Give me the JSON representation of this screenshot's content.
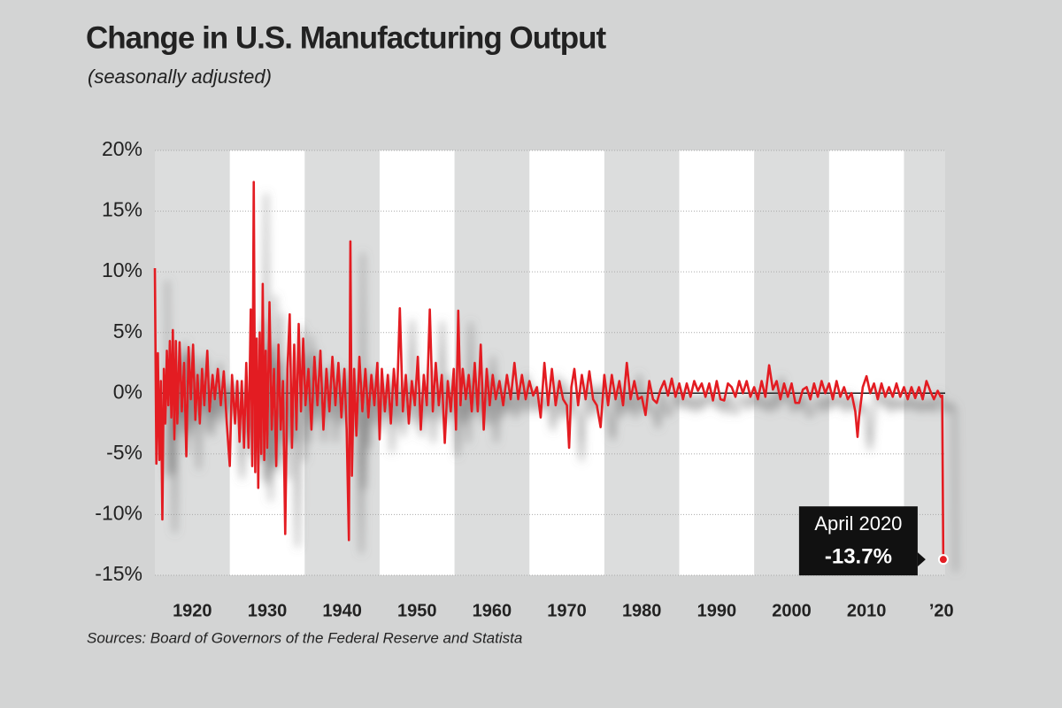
{
  "chart_data": {
    "type": "line",
    "title": "Change in U.S. Manufacturing Output",
    "subtitle": "(seasonally adjusted)",
    "source": "Sources: Board of Governors of the Federal Reserve and Statista",
    "annotation": "April 2020",
    "color": "#e31e24",
    "xlim": [
      1915,
      2020.5
    ],
    "xticks": [
      1920,
      1930,
      1940,
      1950,
      1960,
      1970,
      1980,
      1990,
      2000,
      2010,
      {
        "value": 2020,
        "label": "’20"
      }
    ],
    "ylim": [
      -15,
      20
    ],
    "yticks": [
      {
        "value": -15,
        "label": "-15%"
      },
      {
        "value": -10,
        "label": "-10%"
      },
      {
        "value": -5,
        "label": "-5%"
      },
      {
        "value": 0,
        "label": "0%"
      },
      {
        "value": 5,
        "label": "5%"
      },
      {
        "value": 10,
        "label": "10%"
      },
      {
        "value": 15,
        "label": "15%"
      },
      {
        "value": 20,
        "label": "20%"
      }
    ],
    "grid": true,
    "x": [
      1915.0,
      1915.2,
      1915.4,
      1915.6,
      1915.8,
      1916.0,
      1916.2,
      1916.4,
      1916.6,
      1916.8,
      1917.0,
      1917.2,
      1917.4,
      1917.6,
      1917.8,
      1918.0,
      1918.3,
      1918.6,
      1918.9,
      1919.2,
      1919.5,
      1919.8,
      1920.1,
      1920.4,
      1920.7,
      1921.0,
      1921.3,
      1921.6,
      1922.0,
      1922.3,
      1922.7,
      1923.0,
      1923.4,
      1923.8,
      1924.2,
      1924.6,
      1925.0,
      1925.3,
      1925.7,
      1926.0,
      1926.3,
      1926.6,
      1926.9,
      1927.2,
      1927.5,
      1927.8,
      1928.0,
      1928.2,
      1928.4,
      1928.6,
      1928.8,
      1929.0,
      1929.2,
      1929.4,
      1929.6,
      1929.8,
      1930.0,
      1930.3,
      1930.6,
      1930.9,
      1931.2,
      1931.5,
      1931.8,
      1932.1,
      1932.4,
      1932.7,
      1933.0,
      1933.3,
      1933.6,
      1933.9,
      1934.2,
      1934.5,
      1934.8,
      1935.1,
      1935.5,
      1935.9,
      1936.3,
      1936.7,
      1937.1,
      1937.5,
      1937.9,
      1938.3,
      1938.7,
      1939.1,
      1939.5,
      1939.9,
      1940.3,
      1940.6,
      1940.9,
      1941.1,
      1941.3,
      1941.6,
      1941.9,
      1942.3,
      1942.7,
      1943.1,
      1943.5,
      1943.9,
      1944.3,
      1944.7,
      1945.0,
      1945.3,
      1945.7,
      1946.1,
      1946.5,
      1946.9,
      1947.3,
      1947.7,
      1948.1,
      1948.5,
      1948.9,
      1949.3,
      1949.7,
      1950.1,
      1950.5,
      1950.9,
      1951.3,
      1951.7,
      1952.1,
      1952.5,
      1952.9,
      1953.3,
      1953.7,
      1954.1,
      1954.5,
      1954.9,
      1955.2,
      1955.5,
      1955.8,
      1956.1,
      1956.5,
      1956.9,
      1957.3,
      1957.7,
      1958.1,
      1958.5,
      1958.9,
      1959.3,
      1959.7,
      1960.1,
      1960.5,
      1961.0,
      1961.5,
      1962.0,
      1962.5,
      1963.0,
      1963.5,
      1964.0,
      1964.5,
      1965.0,
      1965.5,
      1966.0,
      1966.5,
      1967.0,
      1967.5,
      1968.0,
      1968.5,
      1969.0,
      1969.5,
      1970.0,
      1970.3,
      1970.6,
      1971.0,
      1971.5,
      1972.0,
      1972.5,
      1973.0,
      1973.5,
      1974.0,
      1974.5,
      1975.0,
      1975.5,
      1976.0,
      1976.5,
      1977.0,
      1977.5,
      1978.0,
      1978.5,
      1979.0,
      1979.5,
      1980.0,
      1980.5,
      1981.0,
      1981.5,
      1982.0,
      1982.5,
      1983.0,
      1983.5,
      1984.0,
      1984.5,
      1985.0,
      1985.5,
      1986.0,
      1986.5,
      1987.0,
      1987.5,
      1988.0,
      1988.5,
      1989.0,
      1989.5,
      1990.0,
      1990.5,
      1991.0,
      1991.5,
      1992.0,
      1992.5,
      1993.0,
      1993.5,
      1994.0,
      1994.5,
      1995.0,
      1995.5,
      1996.0,
      1996.5,
      1997.0,
      1997.5,
      1998.0,
      1998.5,
      1999.0,
      1999.5,
      2000.0,
      2000.5,
      2001.0,
      2001.5,
      2002.0,
      2002.5,
      2003.0,
      2003.5,
      2004.0,
      2004.5,
      2005.0,
      2005.5,
      2006.0,
      2006.5,
      2007.0,
      2007.5,
      2008.0,
      2008.5,
      2008.8,
      2009.0,
      2009.5,
      2010.0,
      2010.5,
      2011.0,
      2011.5,
      2012.0,
      2012.5,
      2013.0,
      2013.5,
      2014.0,
      2014.5,
      2015.0,
      2015.5,
      2016.0,
      2016.5,
      2017.0,
      2017.5,
      2018.0,
      2018.5,
      2019.0,
      2019.5,
      2019.9,
      2020.1,
      2020.25
    ],
    "values": [
      10.3,
      -5.8,
      3.3,
      -5.5,
      1.0,
      -10.4,
      2.0,
      -2.5,
      3.5,
      -1.0,
      4.3,
      -2.0,
      5.2,
      -3.8,
      4.3,
      -2.5,
      4.2,
      -1.5,
      2.5,
      -5.2,
      3.8,
      -0.5,
      4.0,
      -2.2,
      1.5,
      -2.5,
      2.0,
      -1.0,
      3.5,
      -1.5,
      1.5,
      -0.5,
      2.0,
      -1.0,
      1.8,
      -2.5,
      -6.0,
      1.5,
      -2.5,
      1.0,
      -4.0,
      1.0,
      -4.5,
      2.5,
      -4.5,
      6.9,
      -6.0,
      17.4,
      -6.5,
      4.5,
      -7.8,
      5.0,
      -5.0,
      9.0,
      -5.5,
      3.5,
      -4.5,
      7.5,
      -3.0,
      2.0,
      -6.0,
      4.0,
      -3.0,
      1.0,
      -11.6,
      2.0,
      6.5,
      -4.5,
      4.0,
      -3.0,
      5.7,
      -1.5,
      4.5,
      -1.0,
      2.0,
      -3.0,
      3.0,
      -1.0,
      3.5,
      -3.0,
      2.0,
      -1.5,
      3.0,
      -1.0,
      2.5,
      -2.0,
      2.0,
      -3.0,
      -12.1,
      12.5,
      -6.8,
      2.0,
      -3.5,
      3.0,
      -1.5,
      2.0,
      -2.0,
      1.5,
      -1.0,
      2.5,
      -3.8,
      2.0,
      -1.5,
      1.5,
      -2.5,
      2.0,
      -1.0,
      7.0,
      -1.5,
      1.5,
      -2.5,
      1.0,
      -1.0,
      3.0,
      -3.0,
      1.5,
      -1.0,
      6.9,
      -1.5,
      2.5,
      -1.0,
      1.5,
      -4.1,
      1.0,
      -1.5,
      2.0,
      -3.0,
      6.8,
      -1.0,
      2.0,
      -0.5,
      1.5,
      -1.5,
      2.5,
      -1.5,
      4.0,
      -3.0,
      2.0,
      -1.0,
      1.5,
      -0.5,
      1.0,
      -1.0,
      1.5,
      -0.5,
      2.5,
      -0.5,
      1.5,
      -0.5,
      1.0,
      -0.2,
      0.5,
      -2.0,
      2.5,
      -1.0,
      2.0,
      -1.0,
      1.0,
      -0.5,
      -1.0,
      -4.5,
      0.5,
      2.0,
      -1.0,
      1.5,
      -0.5,
      1.8,
      -0.5,
      -1.0,
      -2.8,
      1.5,
      -1.0,
      1.5,
      -0.5,
      1.0,
      -1.0,
      2.5,
      -0.5,
      1.0,
      -0.5,
      -0.3,
      -1.8,
      1.0,
      -0.5,
      -0.8,
      0.3,
      1.0,
      -0.2,
      1.2,
      -0.3,
      0.8,
      -0.5,
      0.8,
      -0.3,
      1.0,
      0.2,
      0.8,
      -0.3,
      0.8,
      -0.6,
      1.0,
      -0.5,
      -0.6,
      0.8,
      0.5,
      -0.3,
      1.0,
      0.0,
      1.0,
      -0.3,
      0.5,
      -0.5,
      1.0,
      -0.3,
      2.3,
      0.3,
      1.0,
      -0.5,
      0.8,
      -0.3,
      0.8,
      -0.8,
      -0.8,
      0.3,
      0.5,
      -0.5,
      0.8,
      -0.3,
      1.0,
      0.0,
      0.8,
      -0.5,
      1.0,
      -0.3,
      0.5,
      -0.5,
      0.0,
      -1.5,
      -3.6,
      -2.0,
      0.5,
      1.4,
      0.0,
      0.8,
      -0.5,
      0.8,
      -0.3,
      0.5,
      -0.3,
      0.8,
      -0.3,
      0.5,
      -0.5,
      0.5,
      -0.4,
      0.5,
      -0.5,
      1.0,
      0.2,
      -0.5,
      0.2,
      -0.3,
      -0.2,
      -13.7
    ],
    "value_labels": [
      null,
      null,
      null,
      null,
      null,
      null,
      null,
      null,
      null,
      null,
      null,
      null,
      null,
      null,
      null,
      null,
      null,
      null,
      null,
      null,
      null,
      null,
      null,
      null,
      null,
      null,
      null,
      null,
      null,
      null,
      null,
      null,
      null,
      null,
      null,
      null,
      null,
      null,
      null,
      null,
      null,
      null,
      null,
      null,
      null,
      null,
      null,
      null,
      null,
      null,
      null,
      null,
      null,
      null,
      null,
      null,
      null,
      null,
      null,
      null,
      null,
      null,
      null,
      null,
      null,
      null,
      null,
      null,
      null,
      null,
      null,
      null,
      null,
      null,
      null,
      null,
      null,
      null,
      null,
      null,
      null,
      null,
      null,
      null,
      null,
      null,
      null,
      null,
      null,
      null,
      null,
      null,
      null,
      null,
      null,
      null,
      null,
      null,
      null,
      null,
      null,
      null,
      null,
      null,
      null,
      null,
      null,
      null,
      null,
      null,
      null,
      null,
      null,
      null,
      null,
      null,
      null,
      null,
      null,
      null,
      null,
      null,
      null,
      null,
      null,
      null,
      null,
      null,
      null,
      null,
      null,
      null,
      null,
      null,
      null,
      null,
      null,
      null,
      null,
      null,
      null,
      null,
      null,
      null,
      null,
      null,
      null,
      null,
      null,
      null,
      null,
      null,
      null,
      null,
      null,
      null,
      null,
      null,
      null,
      null,
      null,
      null,
      null,
      null,
      null,
      null,
      null,
      null,
      null,
      null,
      null,
      null,
      null,
      null,
      null,
      null,
      null,
      null,
      null,
      null,
      null,
      null,
      null,
      null,
      null,
      null,
      null,
      null,
      null,
      null,
      null,
      null,
      null,
      null,
      null,
      null,
      null,
      null,
      null,
      null,
      null,
      null,
      null,
      null,
      null,
      null,
      null,
      null,
      null,
      null,
      null,
      null,
      null,
      null,
      null,
      null,
      null,
      null,
      null,
      null,
      null,
      null,
      null,
      null,
      null,
      null,
      null,
      null,
      null,
      null,
      null,
      null,
      null,
      null,
      null,
      null,
      null,
      null,
      null,
      null,
      null,
      null,
      null,
      null,
      null,
      null,
      null,
      null,
      null,
      null,
      null,
      null,
      null,
      null,
      null,
      null,
      null,
      null,
      null,
      null,
      null,
      null,
      null,
      "-13.7%"
    ]
  }
}
